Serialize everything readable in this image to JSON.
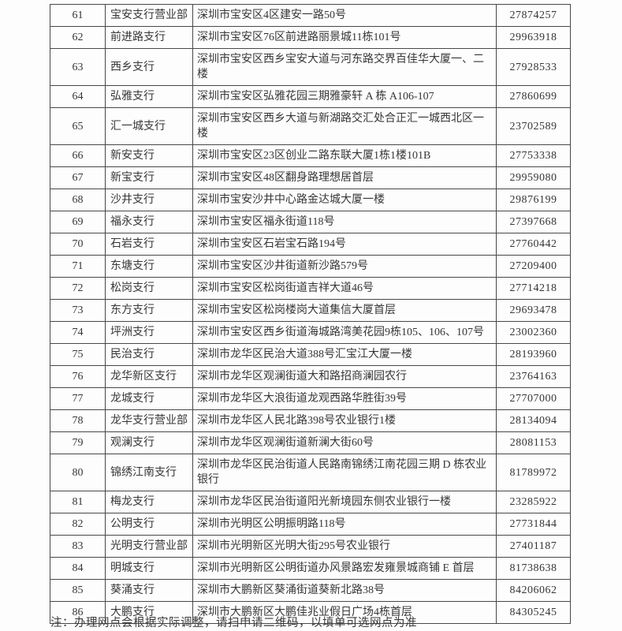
{
  "table": {
    "rows": [
      {
        "no": "61",
        "name": "宝安支行营业部",
        "address": "深圳市宝安区4区建安一路50号",
        "phone": "27874257"
      },
      {
        "no": "62",
        "name": "前进路支行",
        "address": "深圳市宝安区76区前进路丽景城11栋101号",
        "phone": "29963918"
      },
      {
        "no": "63",
        "name": "西乡支行",
        "address": "深圳市宝安区西乡宝安大道与河东路交界百佳华大厦一、二楼",
        "phone": "27928533"
      },
      {
        "no": "64",
        "name": "弘雅支行",
        "address": "深圳市宝安区弘雅花园三期雅豪轩 A 栋 A106-107",
        "phone": "27860699"
      },
      {
        "no": "65",
        "name": "汇一城支行",
        "address": "深圳市宝安区西乡大道与新湖路交汇处合正汇一城西北区一楼",
        "phone": "23702589"
      },
      {
        "no": "66",
        "name": "新安支行",
        "address": "深圳市宝安区23区创业二路东联大厦1栋1楼101B",
        "phone": "27753338"
      },
      {
        "no": "67",
        "name": "新宝支行",
        "address": "深圳市宝安区48区翻身路理想居首层",
        "phone": "29959080"
      },
      {
        "no": "68",
        "name": "沙井支行",
        "address": "深圳市宝安沙井中心路金达城大厦一楼",
        "phone": "29876199"
      },
      {
        "no": "69",
        "name": "福永支行",
        "address": "深圳市宝安区福永街道118号",
        "phone": "27397668"
      },
      {
        "no": "70",
        "name": "石岩支行",
        "address": "深圳市宝安区石岩宝石路194号",
        "phone": "27760442"
      },
      {
        "no": "71",
        "name": "东塘支行",
        "address": "深圳市宝安区沙井街道新沙路579号",
        "phone": "27209400"
      },
      {
        "no": "72",
        "name": "松岗支行",
        "address": "深圳市宝安区松岗街道吉祥大道46号",
        "phone": "27714218"
      },
      {
        "no": "73",
        "name": "东方支行",
        "address": "深圳市宝安区松岗楼岗大道集信大厦首层",
        "phone": "29693478"
      },
      {
        "no": "74",
        "name": "坪洲支行",
        "address": "深圳市宝安区西乡街道海城路湾美花园9栋105、106、107号",
        "phone": "23002360"
      },
      {
        "no": "75",
        "name": "民治支行",
        "address": "深圳市龙华区民治大道388号汇宝江大厦一楼",
        "phone": "28193960"
      },
      {
        "no": "76",
        "name": "龙华新区支行",
        "address": "深圳市龙华区观澜街道大和路招商澜园农行",
        "phone": "23764163"
      },
      {
        "no": "77",
        "name": "龙城支行",
        "address": "深圳市龙华区大浪街道龙观西路华胜街39号",
        "phone": "27707000"
      },
      {
        "no": "78",
        "name": "龙华支行营业部",
        "address": "深圳市龙华区人民北路398号农业银行1楼",
        "phone": "28134094"
      },
      {
        "no": "79",
        "name": "观澜支行",
        "address": "深圳市龙华区观澜街道新澜大街60号",
        "phone": "28081153"
      },
      {
        "no": "80",
        "name": "锦绣江南支行",
        "address": "深圳市龙华区民治街道人民路南锦绣江南花园三期 D 栋农业银行",
        "phone": "81789972"
      },
      {
        "no": "81",
        "name": "梅龙支行",
        "address": "深圳市龙华区民治街道阳光新境园东侧农业银行一楼",
        "phone": "23285922"
      },
      {
        "no": "82",
        "name": "公明支行",
        "address": "深圳市光明区公明振明路118号",
        "phone": "27731844"
      },
      {
        "no": "83",
        "name": "光明支行营业部",
        "address": "深圳市光明新区光明大街295号农业银行",
        "phone": "27401187"
      },
      {
        "no": "84",
        "name": "明城支行",
        "address": "深圳市光明新区公明街道办风景路宏发雍景城商铺 E 首层",
        "phone": "81738638"
      },
      {
        "no": "85",
        "name": "葵涌支行",
        "address": "深圳市大鹏新区葵涌街道葵新北路38号",
        "phone": "84206062"
      },
      {
        "no": "86",
        "name": "大鹏支行",
        "address": "深圳市大鹏新区大鹏佳兆业假日广场4栋首层",
        "phone": "84305245"
      }
    ]
  },
  "footer": {
    "note": "注：办理网点会根据实际调整，请扫申请二维码，以填单可选网点为准"
  }
}
